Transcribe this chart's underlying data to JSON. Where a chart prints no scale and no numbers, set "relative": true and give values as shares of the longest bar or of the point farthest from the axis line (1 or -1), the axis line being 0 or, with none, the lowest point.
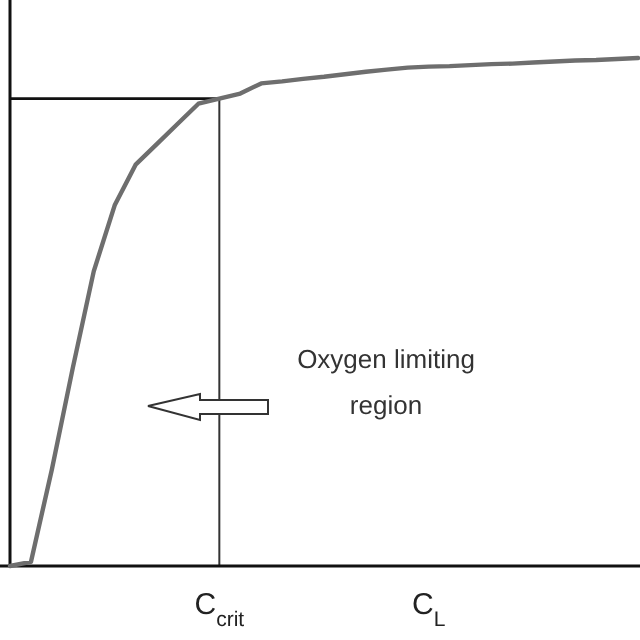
{
  "chart_data": {
    "type": "line",
    "relative": true,
    "color": "#6e6e6e",
    "categories": [
      null,
      null,
      null,
      null,
      null,
      null,
      null,
      null,
      null,
      null,
      "C$_{crit}$",
      null,
      null,
      null,
      null,
      null,
      null,
      null,
      null,
      null,
      "C$_{L}$",
      null,
      null,
      null,
      null,
      null,
      null,
      null,
      null,
      null,
      null
    ],
    "values": [
      0,
      0.008,
      0.19,
      0.39,
      0.58,
      0.71,
      0.79,
      0.83,
      0.87,
      0.91,
      0.92,
      0.93,
      0.95,
      0.954,
      0.959,
      0.963,
      0.968,
      0.973,
      0.977,
      0.981,
      0.983,
      0.984,
      0.986,
      0.988,
      0.989,
      0.991,
      0.993,
      0.995,
      0.996,
      0.998,
      1
    ],
    "ref_lines": [
      {
        "axis": "x",
        "value": "C$_{crit}$",
        "color": "#333333"
      },
      {
        "axis": "y",
        "value": 0.92,
        "color": "#111111"
      }
    ],
    "annotations": [
      "Oxygen limiting region"
    ],
    "grid": false,
    "legend": false,
    "marker": "none",
    "line_style": "solid"
  }
}
